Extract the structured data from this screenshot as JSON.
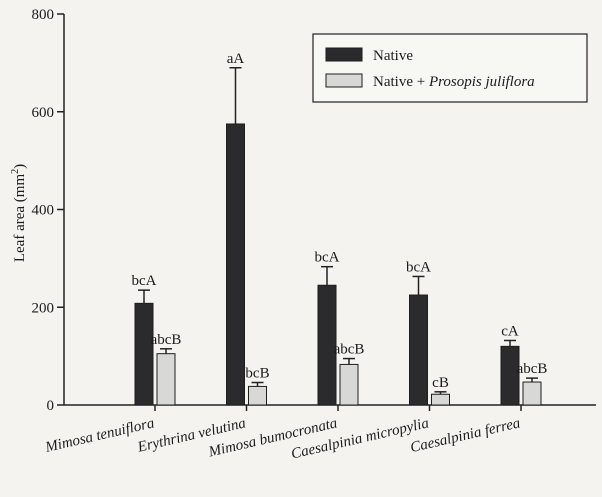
{
  "chart_data": {
    "type": "bar",
    "title": "",
    "xlabel": "",
    "ylabel": "Leaf area (mm",
    "ylabel_sup": "2",
    "ylabel_close": ")",
    "ylim": [
      0,
      800
    ],
    "yticks": [
      0,
      200,
      400,
      600,
      800
    ],
    "grid": false,
    "legend_position": "top-right",
    "categories": [
      "Mimosa tenuiflora",
      "Erythrina velutina",
      "Mimosa bumocronata",
      "Caesalpinia micropylia",
      "Caesalpinia ferrea"
    ],
    "series": [
      {
        "name": "Native",
        "name_parts": [
          "Native",
          ""
        ],
        "color": "#2b2b2e",
        "values": [
          208,
          575,
          245,
          225,
          120
        ],
        "errors": [
          27,
          115,
          38,
          38,
          12
        ],
        "labels": [
          "bcA",
          "aA",
          "bcA",
          "bcA",
          "cA"
        ]
      },
      {
        "name": "Native + Prosopis juliflora",
        "name_parts": [
          "Native + ",
          "Prosopis juliflora"
        ],
        "color": "#d8d8d6",
        "values": [
          105,
          38,
          83,
          22,
          47
        ],
        "errors": [
          10,
          8,
          12,
          5,
          8
        ],
        "labels": [
          "abcB",
          "bcB",
          "abcB",
          "cB",
          "abcB"
        ]
      }
    ]
  }
}
